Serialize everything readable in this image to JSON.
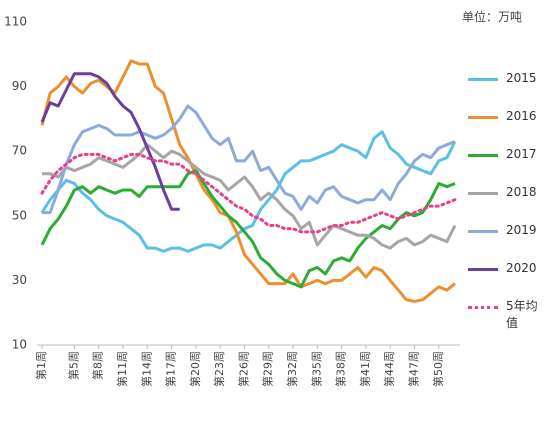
{
  "chart_data": {
    "type": "line",
    "unit": "单位：万吨",
    "categories": [
      "第1周",
      null,
      null,
      null,
      "第5周",
      null,
      null,
      "第8周",
      null,
      null,
      "第11周",
      null,
      null,
      "第14周",
      null,
      null,
      "第17周",
      null,
      null,
      "第20周",
      null,
      null,
      "第23周",
      null,
      null,
      "第26周",
      null,
      null,
      "第29周",
      null,
      null,
      "第32周",
      null,
      null,
      "第35周",
      null,
      null,
      "第38周",
      null,
      null,
      "第41周",
      null,
      null,
      "第44周",
      null,
      null,
      "第47周",
      null,
      null,
      "第50周",
      null,
      null
    ],
    "ylim": [
      10,
      110
    ],
    "yticks": [
      10,
      30,
      50,
      70,
      90,
      110
    ],
    "grid": false,
    "legend": "right",
    "series": [
      {
        "name": "2015",
        "color": "#5bbfe8",
        "values": [
          51,
          55,
          58,
          61,
          60,
          57,
          55,
          52,
          50,
          49,
          48,
          46,
          44,
          40,
          40,
          39,
          40,
          40,
          39,
          40,
          41,
          41,
          40,
          42,
          44,
          46,
          47,
          52,
          55,
          58,
          63,
          65,
          67,
          67,
          68,
          69,
          70,
          72,
          71,
          70,
          68,
          74,
          76,
          71,
          69,
          66,
          65,
          64,
          63,
          67,
          68,
          73
        ]
      },
      {
        "name": "2016",
        "color": "#ec8f2f",
        "values": [
          78,
          88,
          90,
          93,
          90,
          88,
          91,
          92,
          90,
          88,
          93,
          98,
          97,
          97,
          90,
          88,
          80,
          72,
          68,
          63,
          58,
          55,
          51,
          50,
          45,
          38,
          35,
          32,
          29,
          29,
          29,
          32,
          28,
          29,
          30,
          29,
          30,
          30,
          32,
          34,
          31,
          34,
          33,
          30,
          27,
          24,
          23.5,
          24,
          26,
          28,
          27,
          29
        ]
      },
      {
        "name": "2017",
        "color": "#2eab34",
        "values": [
          41,
          46,
          49,
          53,
          58,
          59,
          57,
          59,
          58,
          57,
          58,
          58,
          56,
          59,
          59,
          59,
          59,
          59,
          63,
          64,
          60,
          56,
          53,
          50,
          48,
          45,
          42,
          37,
          35,
          32,
          30,
          29,
          28,
          33,
          34,
          32,
          36,
          37,
          36,
          40,
          43,
          45,
          47,
          46,
          49,
          51,
          50,
          51,
          55,
          60,
          59,
          60
        ]
      },
      {
        "name": "2018",
        "color": "#a6a6a6",
        "values": [
          63,
          63,
          62,
          65,
          64,
          65,
          66,
          68,
          67,
          66,
          65,
          67,
          69,
          72,
          70,
          68,
          70,
          69,
          67,
          65,
          63,
          62,
          61,
          58,
          60,
          62,
          59,
          55,
          57,
          55,
          52,
          50,
          46,
          48,
          41,
          44,
          47,
          46,
          45,
          44,
          44,
          43,
          41,
          40,
          42,
          43,
          41,
          42,
          44,
          43,
          42,
          47
        ]
      },
      {
        "name": "2019",
        "color": "#8eaadb",
        "values": [
          51,
          51,
          58,
          66,
          72,
          76,
          77,
          78,
          77,
          75,
          75,
          75,
          76,
          75,
          74,
          75,
          77,
          80,
          84,
          82,
          78,
          74,
          72,
          74,
          67,
          67,
          70,
          64,
          65,
          61,
          57,
          56,
          52,
          56,
          54,
          58,
          59,
          56,
          55,
          54,
          55,
          55,
          58,
          55,
          60,
          63,
          67,
          69,
          68,
          71,
          72,
          73
        ]
      },
      {
        "name": "2020",
        "color": "#6b3fa0",
        "values": [
          79,
          85,
          84,
          89,
          94,
          94,
          94,
          93,
          91,
          87,
          84,
          82,
          77,
          71,
          65,
          58,
          52,
          52,
          null,
          null,
          null,
          null,
          null,
          null,
          null,
          null,
          null,
          null,
          null,
          null,
          null,
          null,
          null,
          null,
          null,
          null,
          null,
          null,
          null,
          null,
          null,
          null,
          null,
          null,
          null,
          null,
          null,
          null,
          null,
          null,
          null,
          null
        ]
      },
      {
        "name": "5年均值",
        "color": "#e8408f",
        "dash": true,
        "values": [
          57,
          61,
          64,
          66,
          68,
          69,
          69,
          69,
          68,
          67,
          68,
          69,
          69,
          68,
          67,
          67,
          66,
          66,
          64,
          63,
          61,
          59,
          57,
          55,
          53,
          52,
          50,
          49,
          47,
          47,
          46,
          46,
          45,
          45,
          45,
          46,
          47,
          47,
          48,
          48,
          49,
          50,
          51,
          50,
          49,
          50,
          51,
          52,
          53,
          53,
          54,
          55
        ]
      }
    ]
  }
}
